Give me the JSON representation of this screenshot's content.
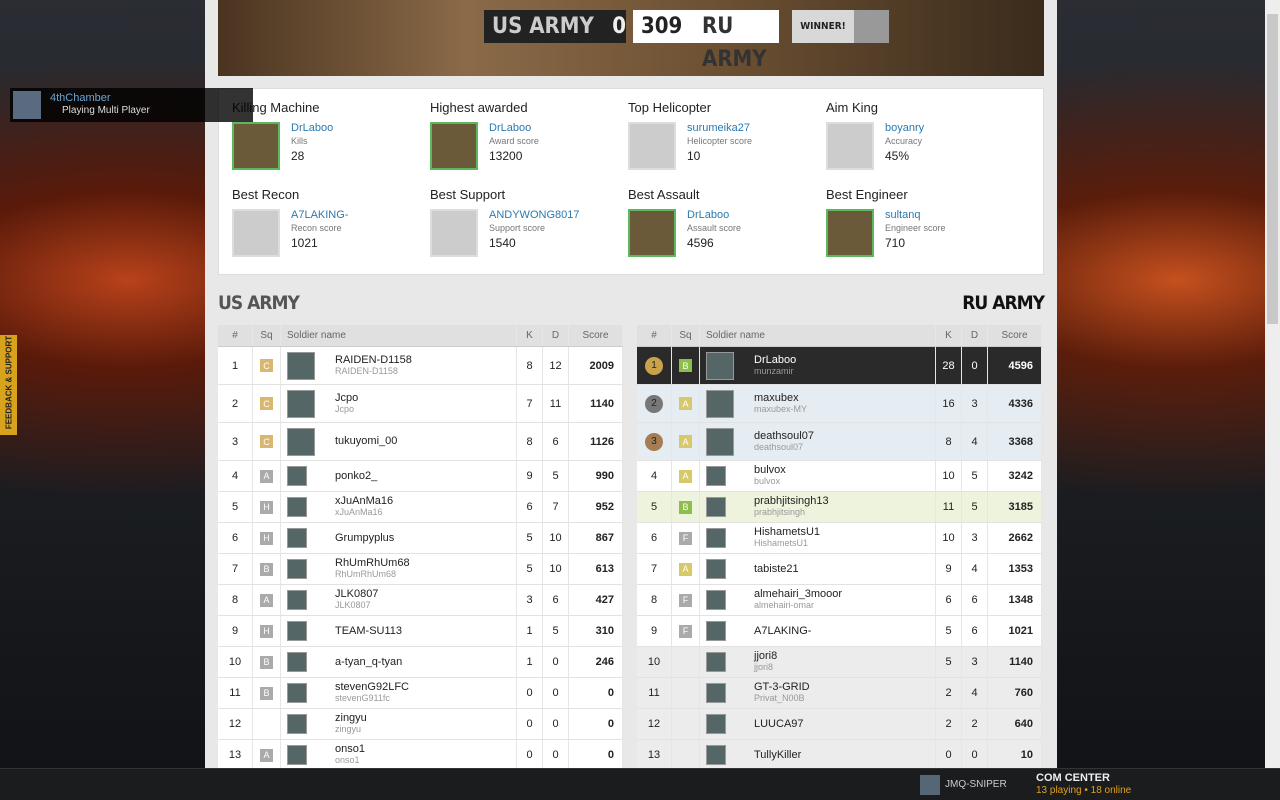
{
  "header": {
    "team1": "US ARMY",
    "score1": 0,
    "score2": 309,
    "team2": "RU ARMY",
    "winner": "WINNER!"
  },
  "notification": {
    "name": "4thChamber",
    "status": "Playing Multi Player"
  },
  "feedback": "FEEDBACK & SUPPORT",
  "awards": [
    {
      "title": "Killing Machine",
      "player": "DrLaboo",
      "stat_label": "Kills",
      "stat_value": "28"
    },
    {
      "title": "Highest awarded",
      "player": "DrLaboo",
      "stat_label": "Award score",
      "stat_value": "13200"
    },
    {
      "title": "Top Helicopter",
      "player": "surumeika27",
      "stat_label": "Helicopter score",
      "stat_value": "10"
    },
    {
      "title": "Aim King",
      "player": "boyanry",
      "stat_label": "Accuracy",
      "stat_value": "45%"
    },
    {
      "title": "Best Recon",
      "player": "A7LAKING-",
      "stat_label": "Recon score",
      "stat_value": "1021"
    },
    {
      "title": "Best Support",
      "player": "ANDYWONG8017",
      "stat_label": "Support score",
      "stat_value": "1540"
    },
    {
      "title": "Best Assault",
      "player": "DrLaboo",
      "stat_label": "Assault score",
      "stat_value": "4596"
    },
    {
      "title": "Best Engineer",
      "player": "sultanq",
      "stat_label": "Engineer score",
      "stat_value": "710"
    }
  ],
  "teams": [
    {
      "title": "US ARMY",
      "columns": [
        "#",
        "Sq",
        "Soldier name",
        "K",
        "D",
        "Score"
      ],
      "rows": [
        [
          "1",
          "C",
          "RAIDEN-D1158",
          "RAIDEN-D1158",
          "8",
          "12",
          "2009"
        ],
        [
          "2",
          "C",
          "Jcpo",
          "Jcpo",
          "7",
          "11",
          "1140"
        ],
        [
          "3",
          "C",
          "tukuyomi_00",
          null,
          "8",
          "6",
          "1126"
        ],
        [
          "4",
          "A",
          "ponko2_",
          null,
          "9",
          "5",
          "990"
        ],
        [
          "5",
          "H",
          "xJuAnMa16",
          "xJuAnMa16",
          "6",
          "7",
          "952"
        ],
        [
          "6",
          "H",
          "Grumpyplus",
          null,
          "5",
          "10",
          "867"
        ],
        [
          "7",
          "B",
          "RhUmRhUm68",
          "RhUmRhUm68",
          "5",
          "10",
          "613"
        ],
        [
          "8",
          "A",
          "JLK0807",
          "JLK0807",
          "3",
          "6",
          "427"
        ],
        [
          "9",
          "H",
          "TEAM-SU113",
          null,
          "1",
          "5",
          "310"
        ],
        [
          "10",
          "B",
          "a-tyan_q-tyan",
          null,
          "1",
          "0",
          "246"
        ],
        [
          "11",
          "B",
          "stevenG92LFC",
          "stevenG911fc",
          "0",
          "0",
          "0"
        ],
        [
          "12",
          null,
          "zingyu",
          "zingyu",
          "0",
          "0",
          "0"
        ],
        [
          "13",
          "A",
          "onso1",
          "onso1",
          "0",
          "0",
          "0"
        ]
      ]
    },
    {
      "title": "RU ARMY",
      "columns": [
        "#",
        "Sq",
        "Soldier name",
        "K",
        "D",
        "Score"
      ],
      "rows": [
        [
          "1",
          "B",
          "DrLaboo",
          "munzamir",
          "28",
          "0",
          "4596"
        ],
        [
          "2",
          "A",
          "maxubex",
          "maxubex-MY",
          "16",
          "3",
          "4336"
        ],
        [
          "3",
          "A",
          "deathsoul07",
          "deathsoul07",
          "8",
          "4",
          "3368"
        ],
        [
          "4",
          "A",
          "bulvox",
          "bulvox",
          "10",
          "5",
          "3242"
        ],
        [
          "5",
          "B",
          "prabhjitsingh13",
          "prabhjitsingh",
          "11",
          "5",
          "3185"
        ],
        [
          "6",
          "F",
          "HishametsU1",
          "HishametsU1",
          "10",
          "3",
          "2662"
        ],
        [
          "7",
          "A",
          "tabiste21",
          null,
          "9",
          "4",
          "1353"
        ],
        [
          "8",
          "F",
          "almehairi_3mooor",
          "almehairi-omar",
          "6",
          "6",
          "1348"
        ],
        [
          "9",
          "F",
          "A7LAKING-",
          null,
          "5",
          "6",
          "1021"
        ],
        [
          "10",
          null,
          "jjori8",
          "jjori8",
          "5",
          "3",
          "1140"
        ],
        [
          "11",
          null,
          "GT-3-GRID",
          "Privat_N00B",
          "2",
          "4",
          "760"
        ],
        [
          "12",
          null,
          "LUUCA97",
          null,
          "2",
          "2",
          "640"
        ],
        [
          "13",
          null,
          "TullyKiller",
          null,
          "0",
          "0",
          "10"
        ]
      ]
    }
  ],
  "bottom_bar": {
    "user": "JMQ-SNIPER",
    "com_center": "COM CENTER",
    "status": "13 playing • 18 online"
  }
}
